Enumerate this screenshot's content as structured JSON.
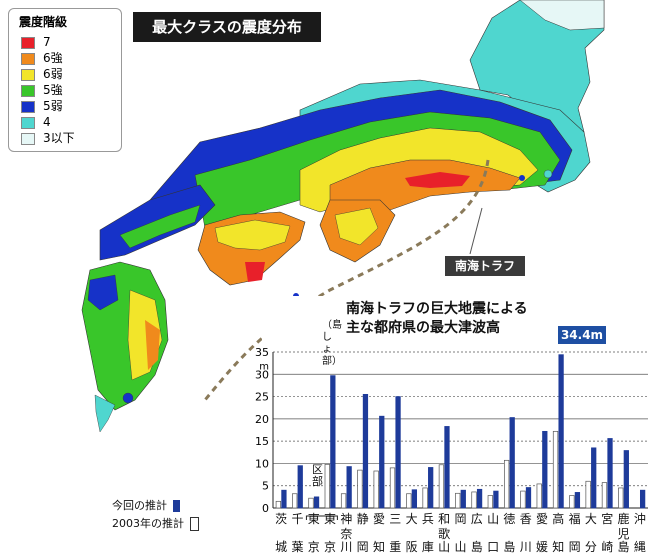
{
  "map": {
    "title": "最大クラスの震度分布",
    "trough_label": "南海トラフ",
    "legend": {
      "title": "震度階級",
      "items": [
        {
          "label": "7",
          "color": "#e8202a"
        },
        {
          "label": "6強",
          "color": "#f08a1c"
        },
        {
          "label": "6弱",
          "color": "#f2e52a"
        },
        {
          "label": "5強",
          "color": "#39c62a"
        },
        {
          "label": "5弱",
          "color": "#1632c8"
        },
        {
          "label": "4",
          "color": "#4fd6cf"
        },
        {
          "label": "3以下",
          "color": "#e6f7f6"
        }
      ]
    }
  },
  "chart": {
    "title_line1": "南海トラフの巨大地震による",
    "title_line2": "主な都府県の最大津波高",
    "callout": "34.4m",
    "tokyo_note": "（島しょ部）",
    "ku_note": "区部",
    "legend_current": "今回の推計",
    "legend_2003": "2003年の推計",
    "unit": "m"
  },
  "chart_data": {
    "type": "bar",
    "title": "南海トラフの巨大地震による主な都府県の最大津波高",
    "ylim": [
      0,
      35
    ],
    "yticks": [
      "0",
      "5",
      "10",
      "15",
      "20",
      "25",
      "30",
      "35"
    ],
    "ylabel": "m",
    "categories": [
      {
        "top": "茨",
        "bottom": "城"
      },
      {
        "top": "千",
        "bottom": "葉"
      },
      {
        "top": "東",
        "bottom": "京",
        "note": "区部"
      },
      {
        "top": "東",
        "bottom": "京",
        "note": "（島しょ部）"
      },
      {
        "top": "神奈",
        "bottom": "川"
      },
      {
        "top": "静",
        "bottom": "岡"
      },
      {
        "top": "愛",
        "bottom": "知"
      },
      {
        "top": "三",
        "bottom": "重"
      },
      {
        "top": "大",
        "bottom": "阪"
      },
      {
        "top": "兵",
        "bottom": "庫"
      },
      {
        "top": "和歌",
        "bottom": "山"
      },
      {
        "top": "岡",
        "bottom": "山"
      },
      {
        "top": "広",
        "bottom": "島"
      },
      {
        "top": "山",
        "bottom": "口"
      },
      {
        "top": "徳",
        "bottom": "島"
      },
      {
        "top": "香",
        "bottom": "川"
      },
      {
        "top": "愛",
        "bottom": "媛"
      },
      {
        "top": "高",
        "bottom": "知"
      },
      {
        "top": "福",
        "bottom": "岡"
      },
      {
        "top": "大",
        "bottom": "分"
      },
      {
        "top": "宮",
        "bottom": "崎"
      },
      {
        "top": "鹿児",
        "bottom": "島"
      },
      {
        "top": "沖",
        "bottom": "縄"
      }
    ],
    "series": [
      {
        "name": "今回の推計",
        "color": "#1e3b9a",
        "values": [
          4,
          9.5,
          2.5,
          29.7,
          9.3,
          25.5,
          20.6,
          25,
          4.1,
          9.1,
          18.3,
          4,
          4.2,
          3.8,
          20.3,
          4.6,
          17.2,
          34.4,
          3.5,
          13.5,
          15.6,
          12.9,
          4
        ]
      },
      {
        "name": "2003年の推計",
        "color": "#ffffff",
        "values": [
          1.5,
          3.2,
          2.2,
          9.8,
          3.2,
          8.5,
          8.3,
          9,
          3.2,
          4.5,
          9.7,
          3.3,
          3.6,
          2.8,
          10.7,
          3.8,
          5.4,
          17.2,
          2.8,
          6,
          5.7,
          4.5,
          0
        ]
      }
    ]
  }
}
